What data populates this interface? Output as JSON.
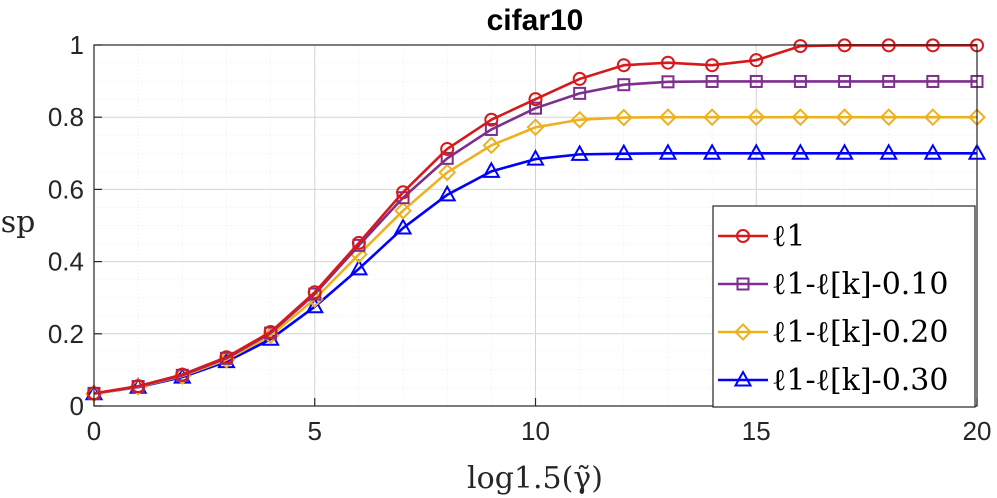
{
  "chart_data": {
    "type": "line",
    "title": "cifar10",
    "xlabel": "log1.5(γ̃)",
    "ylabel": "sp",
    "xlim": [
      0,
      20
    ],
    "ylim": [
      0,
      1
    ],
    "xticks": [
      0,
      5,
      10,
      15,
      20
    ],
    "yticks": [
      0,
      0.2,
      0.4,
      0.6,
      0.8,
      1
    ],
    "xtick_labels": [
      "0",
      "5",
      "10",
      "15",
      "20"
    ],
    "ytick_labels": [
      "0",
      "0.2",
      "0.4",
      "0.6",
      "0.8",
      "1"
    ],
    "grid": true,
    "legend_position": "bottom-right",
    "x": [
      0,
      1,
      2,
      3,
      4,
      5,
      6,
      7,
      8,
      9,
      10,
      11,
      12,
      13,
      14,
      15,
      16,
      17,
      18,
      19,
      20
    ],
    "series": [
      {
        "name": "ℓ1",
        "color": "#d7191c",
        "marker": "circle",
        "values": [
          0.035,
          0.055,
          0.087,
          0.135,
          0.205,
          0.315,
          0.452,
          0.592,
          0.712,
          0.793,
          0.85,
          0.906,
          0.944,
          0.951,
          0.944,
          0.958,
          0.997,
          0.999,
          0.999,
          0.999,
          0.999
        ]
      },
      {
        "name": "ℓ1-ℓ[k]-0.10",
        "color": "#7e2f8e",
        "marker": "square",
        "values": [
          0.035,
          0.054,
          0.085,
          0.132,
          0.202,
          0.31,
          0.445,
          0.577,
          0.686,
          0.766,
          0.825,
          0.866,
          0.89,
          0.898,
          0.899,
          0.899,
          0.899,
          0.899,
          0.899,
          0.899,
          0.899
        ]
      },
      {
        "name": "ℓ1-ℓ[k]-0.20",
        "color": "#edb120",
        "marker": "diamond",
        "values": [
          0.034,
          0.053,
          0.083,
          0.128,
          0.195,
          0.296,
          0.42,
          0.541,
          0.647,
          0.722,
          0.772,
          0.793,
          0.799,
          0.8,
          0.8,
          0.8,
          0.8,
          0.8,
          0.8,
          0.8,
          0.8
        ]
      },
      {
        "name": "ℓ1-ℓ[k]-0.30",
        "color": "#0000ff",
        "marker": "triangle",
        "values": [
          0.034,
          0.052,
          0.08,
          0.123,
          0.185,
          0.275,
          0.38,
          0.493,
          0.585,
          0.65,
          0.684,
          0.697,
          0.699,
          0.7,
          0.7,
          0.7,
          0.7,
          0.7,
          0.7,
          0.7,
          0.7
        ]
      }
    ]
  }
}
